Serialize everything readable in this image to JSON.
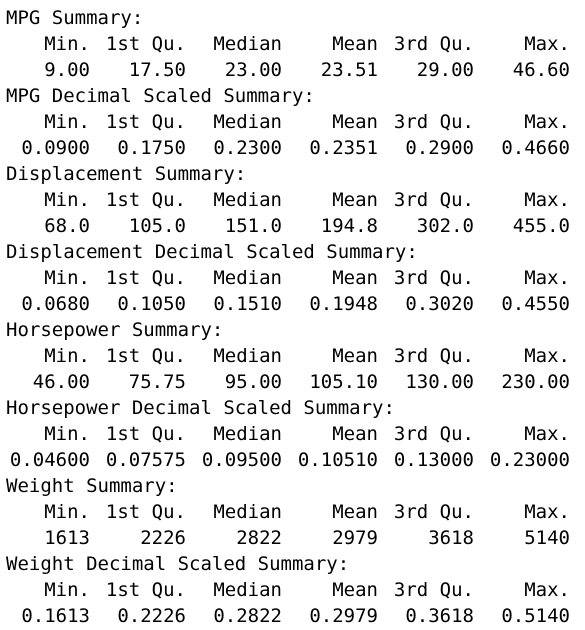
{
  "columns": [
    "Min.",
    "1st Qu.",
    "Median",
    "Mean",
    "3rd Qu.",
    "Max."
  ],
  "summaries": [
    {
      "title": "MPG Summary:",
      "values": [
        "9.00",
        "17.50",
        "23.00",
        "23.51",
        "29.00",
        "46.60"
      ]
    },
    {
      "title": "MPG Decimal Scaled Summary:",
      "values": [
        "0.0900",
        "0.1750",
        "0.2300",
        "0.2351",
        "0.2900",
        "0.4660"
      ]
    },
    {
      "title": "Displacement Summary:",
      "values": [
        "68.0",
        "105.0",
        "151.0",
        "194.8",
        "302.0",
        "455.0"
      ]
    },
    {
      "title": "Displacement Decimal Scaled Summary:",
      "values": [
        "0.0680",
        "0.1050",
        "0.1510",
        "0.1948",
        "0.3020",
        "0.4550"
      ]
    },
    {
      "title": "Horsepower Summary:",
      "values": [
        "46.00",
        "75.75",
        "95.00",
        "105.10",
        "130.00",
        "230.00"
      ]
    },
    {
      "title": "Horsepower Decimal Scaled Summary:",
      "values": [
        "0.04600",
        "0.07575",
        "0.09500",
        "0.10510",
        "0.13000",
        "0.23000"
      ]
    },
    {
      "title": "Weight Summary:",
      "values": [
        "1613",
        "2226",
        "2822",
        "2979",
        "3618",
        "5140"
      ]
    },
    {
      "title": "Weight Decimal Scaled Summary:",
      "values": [
        "0.1613",
        "0.2226",
        "0.2822",
        "0.2979",
        "0.3618",
        "0.5140"
      ]
    }
  ]
}
